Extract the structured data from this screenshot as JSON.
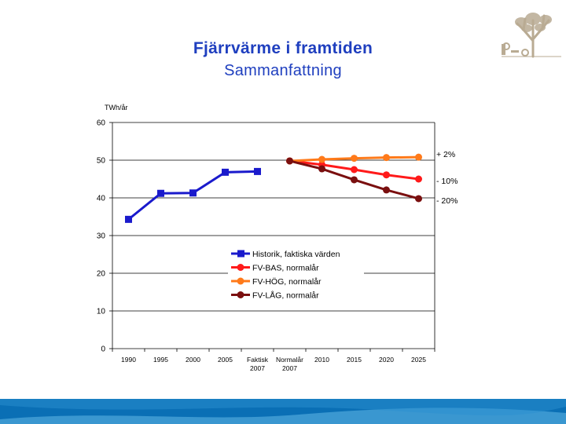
{
  "header": {
    "title": "Fjärrvärme i framtiden",
    "subtitle": "Sammanfattning"
  },
  "logo": {
    "icon": "tree-logo-icon",
    "color": "#b9ab93"
  },
  "footer": {
    "color_dark": "#0a6fb5",
    "color_light": "#4fa8dc"
  },
  "chart_data": {
    "type": "line",
    "ylabel": "TWh/år",
    "ylim": [
      0,
      60
    ],
    "yticks": [
      0,
      10,
      20,
      30,
      40,
      50,
      60
    ],
    "grid": true,
    "categories": [
      {
        "label": "1990",
        "label2": ""
      },
      {
        "label": "1995",
        "label2": ""
      },
      {
        "label": "2000",
        "label2": ""
      },
      {
        "label": "2005",
        "label2": ""
      },
      {
        "label": "Faktisk",
        "label2": "2007"
      },
      {
        "label": "Normalår",
        "label2": "2007"
      },
      {
        "label": "2010",
        "label2": ""
      },
      {
        "label": "2015",
        "label2": ""
      },
      {
        "label": "2020",
        "label2": ""
      },
      {
        "label": "2025",
        "label2": ""
      }
    ],
    "series": [
      {
        "name": "Historik, faktiska värden",
        "color": "#1a1acc",
        "marker": "square",
        "values": [
          34.3,
          41.2,
          41.3,
          46.8,
          47.0,
          null,
          null,
          null,
          null,
          null
        ]
      },
      {
        "name": "FV-BAS, normalår",
        "color": "#ff1a1a",
        "marker": "circle",
        "values": [
          null,
          null,
          null,
          null,
          null,
          49.8,
          48.8,
          47.5,
          46.1,
          45.0
        ]
      },
      {
        "name": "FV-HÖG, normalår",
        "color": "#ff7a1a",
        "marker": "circle",
        "values": [
          null,
          null,
          null,
          null,
          null,
          49.8,
          50.2,
          50.5,
          50.7,
          50.8
        ]
      },
      {
        "name": "FV-LÅG, normalår",
        "color": "#7a0f0f",
        "marker": "circle",
        "values": [
          null,
          null,
          null,
          null,
          null,
          49.8,
          47.7,
          44.8,
          42.1,
          39.8
        ]
      }
    ],
    "annotations": [
      {
        "text": "+ 2%",
        "series": 2
      },
      {
        "text": "- 10%",
        "series": 1
      },
      {
        "text": "- 20%",
        "series": 3
      }
    ],
    "legend": "center-right"
  }
}
